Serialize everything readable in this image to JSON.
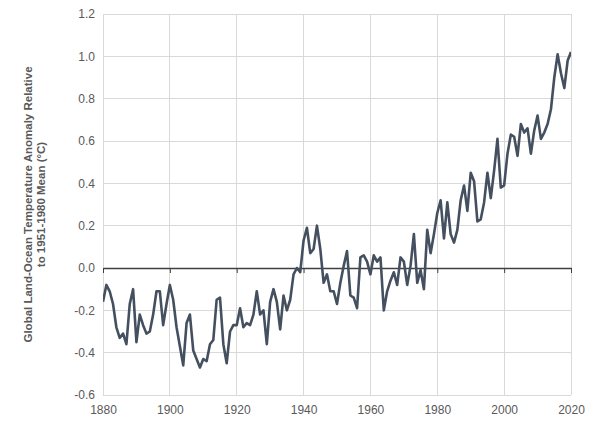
{
  "chart_data": {
    "type": "line",
    "y_label": [
      "Global Land-Ocean Temperature Anomaly Relative",
      "to 1951-1980 Mean (°C)"
    ],
    "x": [
      1880,
      1881,
      1882,
      1883,
      1884,
      1885,
      1886,
      1887,
      1888,
      1889,
      1890,
      1891,
      1892,
      1893,
      1894,
      1895,
      1896,
      1897,
      1898,
      1899,
      1900,
      1901,
      1902,
      1903,
      1904,
      1905,
      1906,
      1907,
      1908,
      1909,
      1910,
      1911,
      1912,
      1913,
      1914,
      1915,
      1916,
      1917,
      1918,
      1919,
      1920,
      1921,
      1922,
      1923,
      1924,
      1925,
      1926,
      1927,
      1928,
      1929,
      1930,
      1931,
      1932,
      1933,
      1934,
      1935,
      1936,
      1937,
      1938,
      1939,
      1940,
      1941,
      1942,
      1943,
      1944,
      1945,
      1946,
      1947,
      1948,
      1949,
      1950,
      1951,
      1952,
      1953,
      1954,
      1955,
      1956,
      1957,
      1958,
      1959,
      1960,
      1961,
      1962,
      1963,
      1964,
      1965,
      1966,
      1967,
      1968,
      1969,
      1970,
      1971,
      1972,
      1973,
      1974,
      1975,
      1976,
      1977,
      1978,
      1979,
      1980,
      1981,
      1982,
      1983,
      1984,
      1985,
      1986,
      1987,
      1988,
      1989,
      1990,
      1991,
      1992,
      1993,
      1994,
      1995,
      1996,
      1997,
      1998,
      1999,
      2000,
      2001,
      2002,
      2003,
      2004,
      2005,
      2006,
      2007,
      2008,
      2009,
      2010,
      2011,
      2012,
      2013,
      2014,
      2015,
      2016,
      2017,
      2018,
      2019,
      2020
    ],
    "values": [
      -0.16,
      -0.08,
      -0.11,
      -0.17,
      -0.28,
      -0.33,
      -0.31,
      -0.36,
      -0.17,
      -0.1,
      -0.35,
      -0.22,
      -0.27,
      -0.31,
      -0.3,
      -0.22,
      -0.11,
      -0.11,
      -0.27,
      -0.17,
      -0.08,
      -0.15,
      -0.28,
      -0.37,
      -0.46,
      -0.26,
      -0.22,
      -0.39,
      -0.43,
      -0.47,
      -0.43,
      -0.44,
      -0.36,
      -0.34,
      -0.15,
      -0.14,
      -0.36,
      -0.45,
      -0.3,
      -0.27,
      -0.27,
      -0.19,
      -0.28,
      -0.26,
      -0.27,
      -0.22,
      -0.11,
      -0.22,
      -0.2,
      -0.36,
      -0.16,
      -0.1,
      -0.16,
      -0.29,
      -0.13,
      -0.2,
      -0.15,
      -0.03,
      0.0,
      -0.02,
      0.13,
      0.19,
      0.07,
      0.09,
      0.2,
      0.09,
      -0.07,
      -0.03,
      -0.11,
      -0.11,
      -0.17,
      -0.07,
      0.01,
      0.08,
      -0.13,
      -0.14,
      -0.19,
      0.05,
      0.06,
      0.03,
      -0.03,
      0.06,
      0.03,
      0.05,
      -0.2,
      -0.11,
      -0.06,
      -0.02,
      -0.08,
      0.05,
      0.03,
      -0.08,
      0.01,
      0.16,
      -0.07,
      -0.01,
      -0.1,
      0.18,
      0.07,
      0.16,
      0.26,
      0.32,
      0.14,
      0.31,
      0.16,
      0.12,
      0.18,
      0.32,
      0.39,
      0.27,
      0.45,
      0.41,
      0.22,
      0.23,
      0.31,
      0.45,
      0.33,
      0.46,
      0.61,
      0.38,
      0.39,
      0.54,
      0.63,
      0.62,
      0.53,
      0.68,
      0.64,
      0.66,
      0.54,
      0.65,
      0.72,
      0.61,
      0.64,
      0.68,
      0.75,
      0.9,
      1.01,
      0.92,
      0.85,
      0.98,
      1.02
    ],
    "color": "#44505f",
    "xlim": [
      1880,
      2020
    ],
    "xticks": [
      1880,
      1900,
      1920,
      1940,
      1960,
      1980,
      2000,
      2020
    ],
    "ylim": [
      -0.6,
      1.2
    ],
    "yticks": [
      -0.6,
      -0.4,
      -0.2,
      {
        "value": 0,
        "label": "0.0"
      },
      0.2,
      0.4,
      0.6,
      0.8,
      {
        "value": 1,
        "label": "1.0"
      },
      1.2
    ],
    "grid": true
  }
}
